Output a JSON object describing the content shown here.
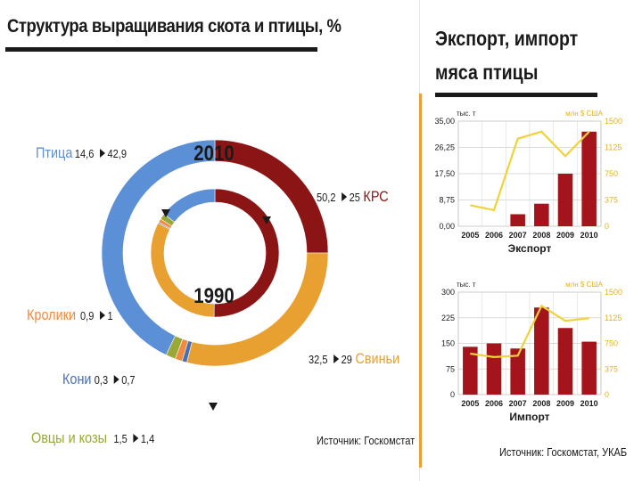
{
  "left": {
    "title": "Структура выращивания скота и птицы, %",
    "source": "Источник: Госкомстат"
  },
  "right": {
    "title_line1": "Экспорт, импорт",
    "title_line2": "мяса птицы",
    "source": "Источник: Госкомстат, УКАБ"
  },
  "colors": {
    "krs": "#8b1414",
    "pigs": "#e8a030",
    "poultry": "#5b8fd6",
    "rabbits": "#f08a3c",
    "horses": "#4a6fb0",
    "sheep": "#9aa838",
    "bar": "#a3151b",
    "line": "#f2d23a"
  },
  "chart_data": [
    {
      "type": "donut",
      "title": "Структура выращивания скота и птицы, %",
      "rings": [
        {
          "label": "2010",
          "values": {
            "КРС": 25,
            "Свиньи": 29,
            "Кони": 0.7,
            "Кролики": 1,
            "Овцы и козы": 1.4,
            "Птица": 42.9
          }
        },
        {
          "label": "1990",
          "values": {
            "КРС": 50.2,
            "Свиньи": 32.5,
            "Кони": 0.3,
            "Кролики": 0.9,
            "Овцы и козы": 1.5,
            "Птица": 14.6
          }
        }
      ],
      "labels": [
        {
          "key": "КРС",
          "name": "КРС",
          "from": "50,2",
          "to": "25",
          "color": "#8b1414"
        },
        {
          "key": "Свиньи",
          "name": "Свиньи",
          "from": "32,5",
          "to": "29",
          "color": "#e8a030"
        },
        {
          "key": "Птица",
          "name": "Птица",
          "from": "14,6",
          "to": "42,9",
          "color": "#5b8fd6"
        },
        {
          "key": "Кролики",
          "name": "Кролики",
          "from": "0,9",
          "to": "1",
          "color": "#f08a3c"
        },
        {
          "key": "Кони",
          "name": "Кони",
          "from": "0,3",
          "to": "0,7",
          "color": "#4a6fb0"
        },
        {
          "key": "Овцы и козы",
          "name": "Овцы и козы",
          "from": "1,5",
          "to": "1,4",
          "color": "#9aa838"
        }
      ]
    },
    {
      "type": "bar+line",
      "title": "Экспорт",
      "categories": [
        "2005",
        "2006",
        "2007",
        "2008",
        "2009",
        "2010"
      ],
      "left_unit": "тыс. т",
      "right_unit": "млн $ США",
      "left_ticks": [
        "0,00",
        "8,75",
        "17,50",
        "26,25",
        "35,00"
      ],
      "right_ticks": [
        "0",
        "375",
        "750",
        "1125",
        "1500"
      ],
      "ylim_left": [
        0,
        35
      ],
      "ylim_right": [
        0,
        1500
      ],
      "bars": [
        0,
        0,
        4,
        7.5,
        17.5,
        31.5
      ],
      "line": [
        300,
        230,
        1250,
        1350,
        1000,
        1350
      ]
    },
    {
      "type": "bar+line",
      "title": "Импорт",
      "categories": [
        "2005",
        "2006",
        "2007",
        "2008",
        "2009",
        "2010"
      ],
      "left_unit": "тыс. т",
      "right_unit": "млн $ США",
      "left_ticks": [
        "0",
        "75",
        "150",
        "225",
        "300"
      ],
      "right_ticks": [
        "0",
        "375",
        "750",
        "1125",
        "1500"
      ],
      "ylim_left": [
        0,
        300
      ],
      "ylim_right": [
        0,
        1500
      ],
      "bars": [
        140,
        150,
        135,
        255,
        195,
        155
      ],
      "line": [
        600,
        550,
        570,
        1300,
        1080,
        1120
      ]
    }
  ]
}
